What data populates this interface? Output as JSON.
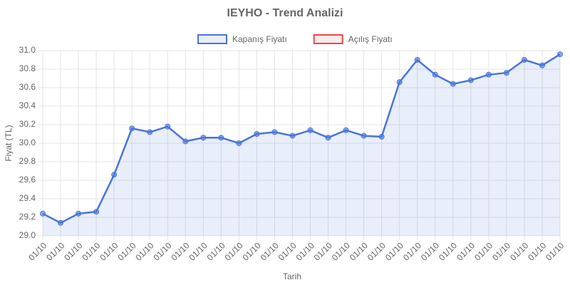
{
  "chart_data": {
    "type": "line",
    "title": "IEYHO - Trend Analizi",
    "x_label": "Tarih",
    "y_label": "Fiyat (TL)",
    "categories": [
      "01/10",
      "01/10",
      "01/10",
      "01/10",
      "01/10",
      "01/10",
      "01/10",
      "01/10",
      "01/10",
      "01/10",
      "01/10",
      "01/10",
      "01/10",
      "01/10",
      "01/10",
      "01/10",
      "01/10",
      "01/10",
      "01/10",
      "01/10",
      "01/10",
      "01/10",
      "01/10",
      "01/10",
      "01/10",
      "01/10",
      "01/10",
      "01/10",
      "01/10",
      "01/10"
    ],
    "series": [
      {
        "name": "Kapanış Fiyatı",
        "color": "#4a74dc",
        "fill": "rgba(74,116,220,0.12)",
        "values": [
          29.24,
          29.14,
          29.24,
          29.26,
          29.66,
          30.16,
          30.12,
          30.18,
          30.02,
          30.06,
          30.06,
          30.0,
          30.1,
          30.12,
          30.08,
          30.14,
          30.06,
          30.14,
          30.08,
          30.07,
          30.66,
          30.9,
          30.74,
          30.64,
          30.68,
          30.74,
          30.76,
          30.9,
          30.84,
          30.96
        ]
      },
      {
        "name": "Açılış Fiyatı",
        "color": "#e8474a",
        "fill": "rgba(232,71,74,0.12)",
        "values": [
          null,
          null,
          null,
          null,
          null,
          null,
          null,
          null,
          null,
          null,
          null,
          null,
          null,
          null,
          null,
          null,
          null,
          null,
          null,
          null,
          null,
          null,
          null,
          null,
          null,
          null,
          null,
          null,
          null,
          null
        ]
      }
    ],
    "ylim": [
      29.0,
      31.0
    ],
    "yticks": [
      {
        "value": 29.0,
        "label": "29.0"
      },
      29.2,
      29.4,
      29.6,
      29.8,
      {
        "value": 30.0,
        "label": "30.0"
      },
      30.2,
      30.4,
      30.6,
      30.8,
      {
        "value": 31.0,
        "label": "31.0"
      }
    ],
    "grid": true,
    "legend": "top"
  }
}
